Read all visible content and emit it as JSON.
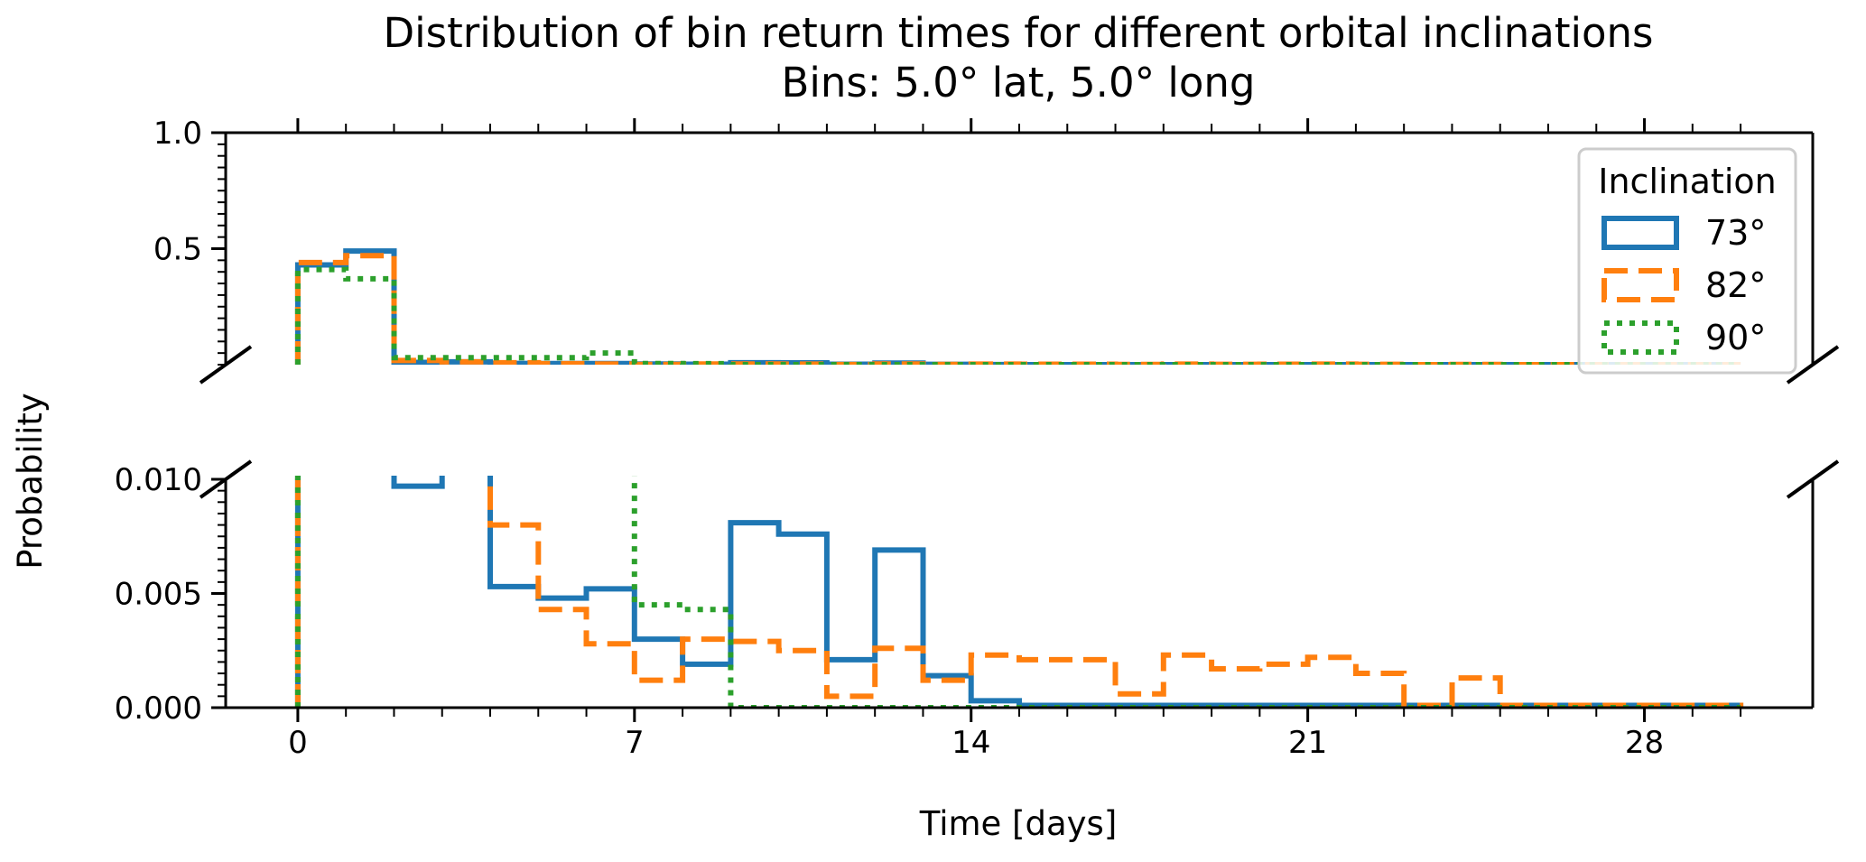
{
  "chart_data": {
    "type": "step histogram (broken y-axis)",
    "title": "Distribution of bin return times for different orbital inclinations",
    "subtitle": "Bins: 5.0° lat, 5.0° long",
    "xlabel": "Time [days]",
    "ylabel": "Probability",
    "xlim": [
      -1.5,
      31.5
    ],
    "x_ticks": [
      "0",
      "7",
      "14",
      "21",
      "28"
    ],
    "top_panel": {
      "ylim": [
        0.0,
        1.0
      ],
      "y_ticks": [
        "0.5",
        "1.0"
      ]
    },
    "bottom_panel": {
      "ylim": [
        0.0,
        0.01
      ],
      "y_ticks": [
        "0.000",
        "0.005",
        "0.010"
      ]
    },
    "legend": {
      "title": "Inclination",
      "position": "top-right"
    },
    "bin_edges": [
      0,
      1,
      2,
      3,
      4,
      5,
      6,
      7,
      8,
      9,
      10,
      11,
      12,
      13,
      14,
      15,
      16,
      17,
      18,
      19,
      20,
      21,
      22,
      23,
      24,
      25,
      26,
      27,
      28,
      29,
      30
    ],
    "series": [
      {
        "name": "73°",
        "color": "#1f77b4",
        "dash": "solid",
        "values": [
          0.43,
          0.49,
          0.0097,
          0.0122,
          0.0053,
          0.0048,
          0.0052,
          0.003,
          0.0019,
          0.0081,
          0.0076,
          0.0021,
          0.0069,
          0.0014,
          0.0003,
          0.0001,
          0.0001,
          0.0001,
          0.0001,
          0.0001,
          0.0001,
          0.0001,
          0.0001,
          0.0001,
          0.0001,
          0.0001,
          0.0001,
          0.0001,
          0.0001,
          0.0001
        ]
      },
      {
        "name": "82°",
        "color": "#ff7f0e",
        "dash": "dashed",
        "values": [
          0.44,
          0.47,
          0.018,
          0.012,
          0.008,
          0.0043,
          0.0028,
          0.0012,
          0.003,
          0.0029,
          0.0025,
          0.0005,
          0.0026,
          0.0012,
          0.0023,
          0.0021,
          0.0021,
          0.0006,
          0.0023,
          0.0017,
          0.0019,
          0.0022,
          0.0015,
          0.0001,
          0.0013,
          0.0001,
          0.0001,
          0.0001,
          0.0001,
          0.0001
        ]
      },
      {
        "name": "90°",
        "color": "#2ca02c",
        "dash": "dotted",
        "values": [
          0.41,
          0.37,
          0.03,
          0.03,
          0.03,
          0.03,
          0.05,
          0.0045,
          0.0043,
          0.0,
          0.0,
          0.0,
          0.0,
          0.0,
          0.0,
          0.0,
          0.0,
          0.0,
          0.0,
          0.0,
          0.0,
          0.0,
          0.0,
          0.0,
          0.0,
          0.0,
          0.0,
          0.0,
          0.0,
          0.0
        ]
      }
    ]
  }
}
